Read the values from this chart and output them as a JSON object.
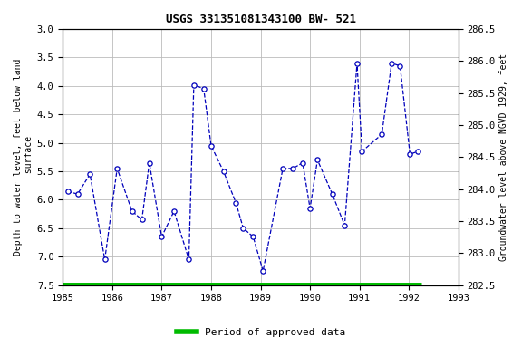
{
  "title": "USGS 331351081343100 BW- 521",
  "ylabel_left": "Depth to water level, feet below land\n surface",
  "ylabel_right": "Groundwater level above NGVD 1929, feet",
  "xlim": [
    1985,
    1993
  ],
  "ylim_left": [
    7.5,
    3.0
  ],
  "ylim_right": [
    282.5,
    286.5
  ],
  "x_ticks": [
    1985,
    1986,
    1987,
    1988,
    1989,
    1990,
    1991,
    1992,
    1993
  ],
  "y_ticks_left": [
    3.0,
    3.5,
    4.0,
    4.5,
    5.0,
    5.5,
    6.0,
    6.5,
    7.0,
    7.5
  ],
  "y_ticks_right": [
    282.5,
    283.0,
    283.5,
    284.0,
    284.5,
    285.0,
    285.5,
    286.0,
    286.5
  ],
  "data_x": [
    1985.1,
    1985.3,
    1985.55,
    1985.85,
    1986.1,
    1986.4,
    1986.6,
    1986.75,
    1987.0,
    1987.25,
    1987.55,
    1987.65,
    1987.85,
    1988.0,
    1988.25,
    1988.5,
    1988.65,
    1988.85,
    1989.05,
    1989.45,
    1989.65,
    1989.85,
    1990.0,
    1990.15,
    1990.45,
    1990.7,
    1990.95,
    1991.05,
    1991.45,
    1991.65,
    1991.82,
    1992.02,
    1992.18
  ],
  "data_y": [
    5.85,
    5.9,
    5.55,
    7.05,
    5.45,
    6.2,
    6.35,
    5.35,
    6.65,
    6.2,
    7.05,
    3.98,
    4.05,
    5.05,
    5.5,
    6.05,
    6.5,
    6.65,
    7.25,
    5.45,
    5.45,
    5.35,
    6.15,
    5.3,
    5.9,
    6.45,
    3.6,
    5.15,
    4.85,
    3.6,
    3.65,
    5.2,
    5.15
  ],
  "green_bar_x_start": 1985.0,
  "green_bar_x_end": 1992.25,
  "line_color": "#0000bb",
  "marker_facecolor": "#ffffff",
  "marker_edgecolor": "#0000bb",
  "legend_color": "#00bb00",
  "legend_label": "Period of approved data",
  "background_color": "#ffffff",
  "grid_color": "#bbbbbb",
  "title_fontsize": 9,
  "tick_fontsize": 7.5,
  "ylabel_fontsize": 7,
  "legend_fontsize": 8
}
